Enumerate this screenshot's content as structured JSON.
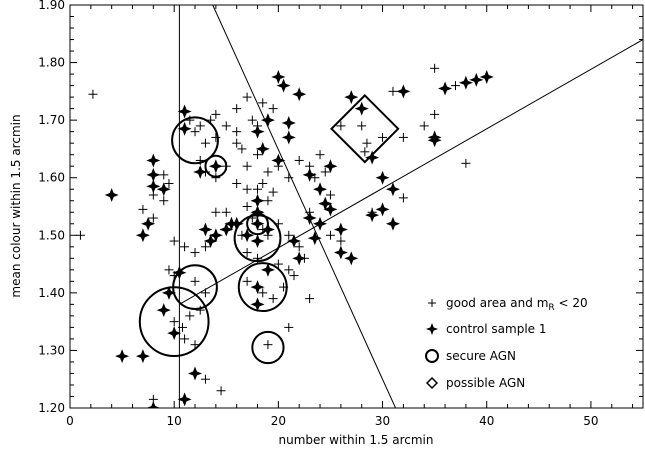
{
  "chart_data": {
    "type": "scatter",
    "title": "",
    "xlabel": "number within 1.5 arcmin",
    "ylabel": "mean colour within 1.5 arcmin",
    "xlim": [
      0,
      55
    ],
    "ylim": [
      1.2,
      1.9
    ],
    "xticks": [
      0,
      10,
      20,
      30,
      40,
      50
    ],
    "yticks": [
      1.2,
      1.3,
      1.4,
      1.5,
      1.6,
      1.7,
      1.8,
      1.9
    ],
    "ytick_labels": [
      "1.20",
      "1.30",
      "1.40",
      "1.50",
      "1.60",
      "1.70",
      "1.80",
      "1.90"
    ],
    "legend_position": "bottom-right",
    "legend": [
      {
        "marker": "plus",
        "label_main": "good area and m",
        "label_sub": "R",
        "label_tail": " < 20"
      },
      {
        "marker": "star",
        "label_main": "control sample 1",
        "label_sub": "",
        "label_tail": ""
      },
      {
        "marker": "circle",
        "label_main": "secure AGN",
        "label_sub": "",
        "label_tail": ""
      },
      {
        "marker": "diamond",
        "label_main": "possible AGN",
        "label_sub": "",
        "label_tail": ""
      }
    ],
    "lines": [
      {
        "name": "vertical-cut",
        "x": [
          10.5,
          10.5
        ],
        "y": [
          1.19,
          1.9
        ]
      },
      {
        "name": "steep-cut",
        "x": [
          13.7,
          31.5
        ],
        "y": [
          1.9,
          1.19
        ]
      },
      {
        "name": "diagonal-cut",
        "x": [
          10.5,
          55
        ],
        "y": [
          1.38,
          1.84
        ]
      }
    ],
    "series": [
      {
        "name": "good area and mR < 20",
        "marker": "plus",
        "points": [
          [
            1,
            1.5
          ],
          [
            2.2,
            1.745
          ],
          [
            8,
            1.57
          ],
          [
            7,
            1.545
          ],
          [
            8,
            1.53
          ],
          [
            9,
            1.56
          ],
          [
            9,
            1.605
          ],
          [
            9.5,
            1.59
          ],
          [
            10,
            1.49
          ],
          [
            11,
            1.48
          ],
          [
            9.5,
            1.44
          ],
          [
            10,
            1.43
          ],
          [
            12,
            1.47
          ],
          [
            13,
            1.48
          ],
          [
            10,
            1.35
          ],
          [
            10.8,
            1.34
          ],
          [
            11.5,
            1.36
          ],
          [
            12.5,
            1.37
          ],
          [
            11,
            1.32
          ],
          [
            12,
            1.31
          ],
          [
            12,
            1.42
          ],
          [
            13,
            1.4
          ],
          [
            13,
            1.25
          ],
          [
            14.5,
            1.23
          ],
          [
            8,
            1.215
          ],
          [
            9,
            1.19
          ],
          [
            11.5,
            1.7
          ],
          [
            12.5,
            1.69
          ],
          [
            13.5,
            1.7
          ],
          [
            14,
            1.71
          ],
          [
            12,
            1.68
          ],
          [
            13,
            1.66
          ],
          [
            14,
            1.67
          ],
          [
            15,
            1.69
          ],
          [
            16,
            1.68
          ],
          [
            16,
            1.72
          ],
          [
            16.5,
            1.65
          ],
          [
            17,
            1.74
          ],
          [
            17.5,
            1.7
          ],
          [
            18,
            1.69
          ],
          [
            18.5,
            1.73
          ],
          [
            19.5,
            1.72
          ],
          [
            16,
            1.66
          ],
          [
            17,
            1.62
          ],
          [
            18,
            1.64
          ],
          [
            19,
            1.61
          ],
          [
            20,
            1.62
          ],
          [
            12.5,
            1.63
          ],
          [
            13,
            1.61
          ],
          [
            14,
            1.6
          ],
          [
            15,
            1.62
          ],
          [
            16,
            1.59
          ],
          [
            17,
            1.58
          ],
          [
            18,
            1.58
          ],
          [
            18.5,
            1.59
          ],
          [
            19.5,
            1.575
          ],
          [
            19,
            1.56
          ],
          [
            17,
            1.55
          ],
          [
            17.5,
            1.53
          ],
          [
            18,
            1.52
          ],
          [
            18.5,
            1.51
          ],
          [
            19,
            1.5
          ],
          [
            20,
            1.52
          ],
          [
            21,
            1.5
          ],
          [
            14,
            1.54
          ],
          [
            15,
            1.54
          ],
          [
            16,
            1.52
          ],
          [
            16.5,
            1.5
          ],
          [
            17,
            1.47
          ],
          [
            18,
            1.46
          ],
          [
            19,
            1.44
          ],
          [
            20,
            1.45
          ],
          [
            21,
            1.44
          ],
          [
            21.5,
            1.43
          ],
          [
            17,
            1.42
          ],
          [
            18,
            1.41
          ],
          [
            18.5,
            1.4
          ],
          [
            19.5,
            1.39
          ],
          [
            20.5,
            1.41
          ],
          [
            22,
            1.48
          ],
          [
            22.5,
            1.46
          ],
          [
            21,
            1.6
          ],
          [
            22,
            1.63
          ],
          [
            23,
            1.62
          ],
          [
            23.5,
            1.6
          ],
          [
            24,
            1.64
          ],
          [
            24.5,
            1.61
          ],
          [
            25,
            1.57
          ],
          [
            23,
            1.54
          ],
          [
            24,
            1.52
          ],
          [
            25,
            1.5
          ],
          [
            26,
            1.49
          ],
          [
            21,
            1.34
          ],
          [
            23,
            1.39
          ],
          [
            19,
            1.31
          ],
          [
            26,
            1.69
          ],
          [
            28,
            1.69
          ],
          [
            28.5,
            1.66
          ],
          [
            28.3,
            1.645
          ],
          [
            30,
            1.67
          ],
          [
            31,
            1.75
          ],
          [
            32,
            1.67
          ],
          [
            32,
            1.565
          ],
          [
            34,
            1.69
          ],
          [
            35,
            1.79
          ],
          [
            35,
            1.71
          ],
          [
            37,
            1.76
          ],
          [
            38,
            1.625
          ],
          [
            29,
            1.54
          ]
        ]
      },
      {
        "name": "control sample 1",
        "marker": "star",
        "points": [
          [
            4,
            1.57
          ],
          [
            5,
            1.29
          ],
          [
            7,
            1.29
          ],
          [
            8,
            1.2
          ],
          [
            7,
            1.5
          ],
          [
            7.5,
            1.52
          ],
          [
            8,
            1.585
          ],
          [
            8,
            1.605
          ],
          [
            8,
            1.63
          ],
          [
            9,
            1.58
          ],
          [
            9.5,
            1.4
          ],
          [
            9,
            1.37
          ],
          [
            10,
            1.33
          ],
          [
            10.5,
            1.435
          ],
          [
            11,
            1.715
          ],
          [
            11,
            1.685
          ],
          [
            12,
            1.26
          ],
          [
            11,
            1.215
          ],
          [
            12.5,
            1.61
          ],
          [
            13,
            1.51
          ],
          [
            13.5,
            1.49
          ],
          [
            14,
            1.62
          ],
          [
            14,
            1.5
          ],
          [
            15,
            1.51
          ],
          [
            15.5,
            1.52
          ],
          [
            16,
            1.52
          ],
          [
            17,
            1.5
          ],
          [
            18,
            1.56
          ],
          [
            18,
            1.54
          ],
          [
            18,
            1.52
          ],
          [
            18,
            1.49
          ],
          [
            18,
            1.41
          ],
          [
            18,
            1.38
          ],
          [
            19,
            1.51
          ],
          [
            19,
            1.44
          ],
          [
            18.5,
            1.65
          ],
          [
            18,
            1.68
          ],
          [
            19,
            1.7
          ],
          [
            20,
            1.775
          ],
          [
            20.5,
            1.76
          ],
          [
            21,
            1.695
          ],
          [
            21,
            1.67
          ],
          [
            22,
            1.745
          ],
          [
            21.5,
            1.49
          ],
          [
            22,
            1.46
          ],
          [
            23,
            1.53
          ],
          [
            23.5,
            1.495
          ],
          [
            24,
            1.52
          ],
          [
            23,
            1.605
          ],
          [
            24,
            1.58
          ],
          [
            24.5,
            1.555
          ],
          [
            25,
            1.545
          ],
          [
            25,
            1.62
          ],
          [
            26,
            1.51
          ],
          [
            26,
            1.47
          ],
          [
            27,
            1.46
          ],
          [
            27,
            1.74
          ],
          [
            28,
            1.72
          ],
          [
            29,
            1.635
          ],
          [
            30,
            1.6
          ],
          [
            31,
            1.58
          ],
          [
            32,
            1.75
          ],
          [
            31,
            1.52
          ],
          [
            29,
            1.535
          ],
          [
            30,
            1.545
          ],
          [
            35,
            1.665
          ],
          [
            35,
            1.67
          ],
          [
            36,
            1.755
          ],
          [
            38,
            1.765
          ],
          [
            39,
            1.77
          ],
          [
            40,
            1.775
          ],
          [
            20,
            1.63
          ]
        ]
      },
      {
        "name": "secure AGN",
        "marker": "circle",
        "points": [
          [
            10,
            1.35,
            3.3
          ],
          [
            12,
            1.41,
            2.1
          ],
          [
            12,
            1.665,
            2.2
          ],
          [
            14,
            1.62,
            1.0
          ],
          [
            18,
            1.495,
            2.2
          ],
          [
            18,
            1.52,
            1.0
          ],
          [
            18.5,
            1.41,
            2.3
          ],
          [
            19,
            1.305,
            1.5
          ]
        ]
      },
      {
        "name": "possible AGN",
        "marker": "diamond",
        "points": [
          [
            28.3,
            1.685,
            3.2
          ]
        ]
      }
    ]
  }
}
